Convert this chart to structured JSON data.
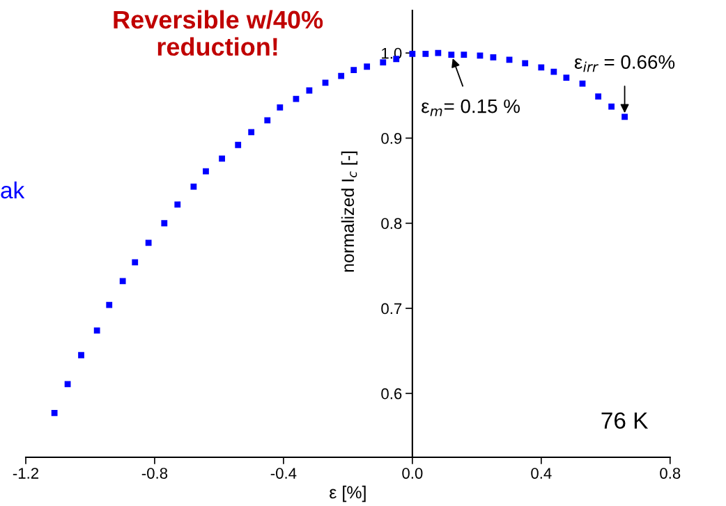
{
  "chart_data": {
    "type": "scatter",
    "xlabel": "ε [%]",
    "ylabel": "normalized I$_{c}$ [-]",
    "xlim": [
      -1.2,
      0.8
    ],
    "xticks": [
      {
        "value": -1.2,
        "label": "-1.2"
      },
      {
        "value": -0.8,
        "label": "-0.8"
      },
      {
        "value": -0.4,
        "label": "-0.4"
      },
      {
        "value": 0,
        "label": "0.0"
      },
      {
        "value": 0.4,
        "label": "0.4"
      },
      {
        "value": 0.8,
        "label": "0.8"
      }
    ],
    "ylim": [
      0.525,
      1.05
    ],
    "yticks": [
      0.6,
      0.7,
      0.8,
      0.9,
      {
        "value": 1.0,
        "label": "1.0"
      }
    ],
    "marker": "square",
    "grid": false,
    "legend": false,
    "series": [
      {
        "color": "#0000ff",
        "x": [
          -1.111,
          -1.07,
          -1.028,
          -0.979,
          -0.941,
          -0.899,
          -0.861,
          -0.819,
          -0.77,
          -0.729,
          -0.679,
          -0.641,
          -0.591,
          -0.541,
          -0.5,
          -0.45,
          -0.411,
          -0.361,
          -0.32,
          -0.27,
          -0.221,
          -0.182,
          -0.141,
          -0.091,
          -0.05,
          0.0,
          0.041,
          0.08,
          0.121,
          0.16,
          0.21,
          0.251,
          0.301,
          0.35,
          0.4,
          0.439,
          0.478,
          0.528,
          0.577,
          0.618,
          0.659
        ],
        "values": [
          0.577,
          0.611,
          0.645,
          0.674,
          0.704,
          0.732,
          0.754,
          0.777,
          0.8,
          0.822,
          0.843,
          0.861,
          0.876,
          0.892,
          0.907,
          0.921,
          0.936,
          0.946,
          0.956,
          0.965,
          0.973,
          0.98,
          0.984,
          0.989,
          0.993,
          0.999,
          0.999,
          1.0,
          0.998,
          0.998,
          0.997,
          0.995,
          0.992,
          0.988,
          0.983,
          0.978,
          0.971,
          0.964,
          0.949,
          0.937,
          0.925
        ]
      }
    ],
    "annotations": [
      "Reversible w/40%\nreduction!",
      "ak",
      {
        "text": "ε$_{irr}$ = 0.66%",
        "x": 0.659,
        "y": 0.925
      },
      {
        "text": "ε$_{m}$= 0.15 %",
        "x": 0.121,
        "y": 0.998
      },
      "76 K"
    ]
  }
}
